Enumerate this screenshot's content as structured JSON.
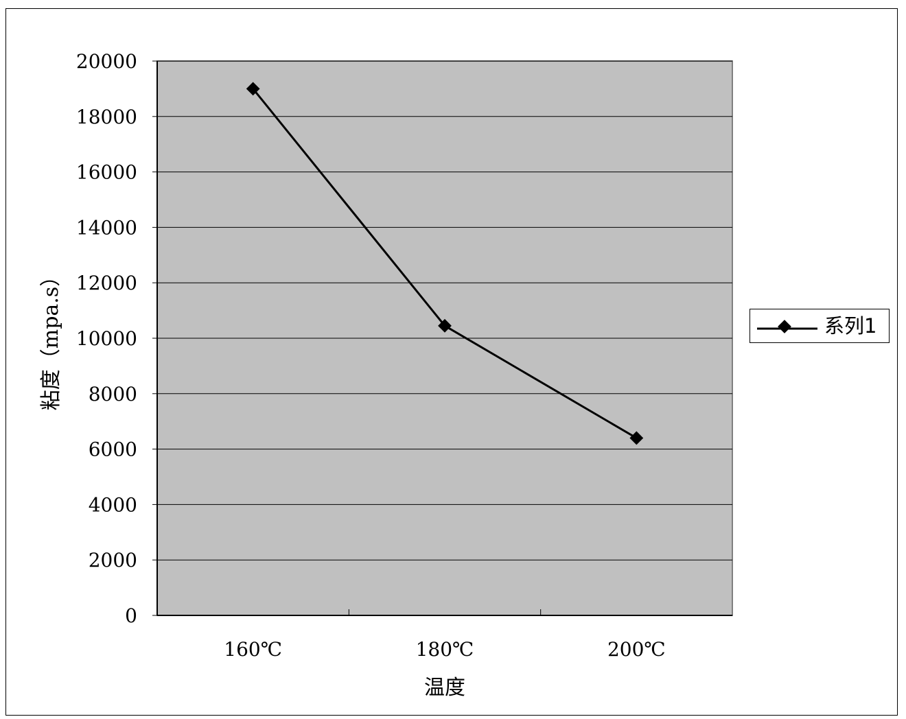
{
  "chart_data": {
    "type": "line",
    "categories": [
      "160℃",
      "180℃",
      "200℃"
    ],
    "series": [
      {
        "name": "系列1",
        "values": [
          19000,
          10450,
          6400
        ]
      }
    ],
    "xlabel": "温度",
    "ylabel": "粘度（mpa.s）",
    "ylim": [
      0,
      20000
    ],
    "yticks": [
      0,
      2000,
      4000,
      6000,
      8000,
      10000,
      12000,
      14000,
      16000,
      18000,
      20000
    ],
    "grid": true,
    "legend_position": "right",
    "colors": {
      "plot_background": "#c0c0c0",
      "line": "#000000",
      "gridline": "#000000"
    }
  }
}
